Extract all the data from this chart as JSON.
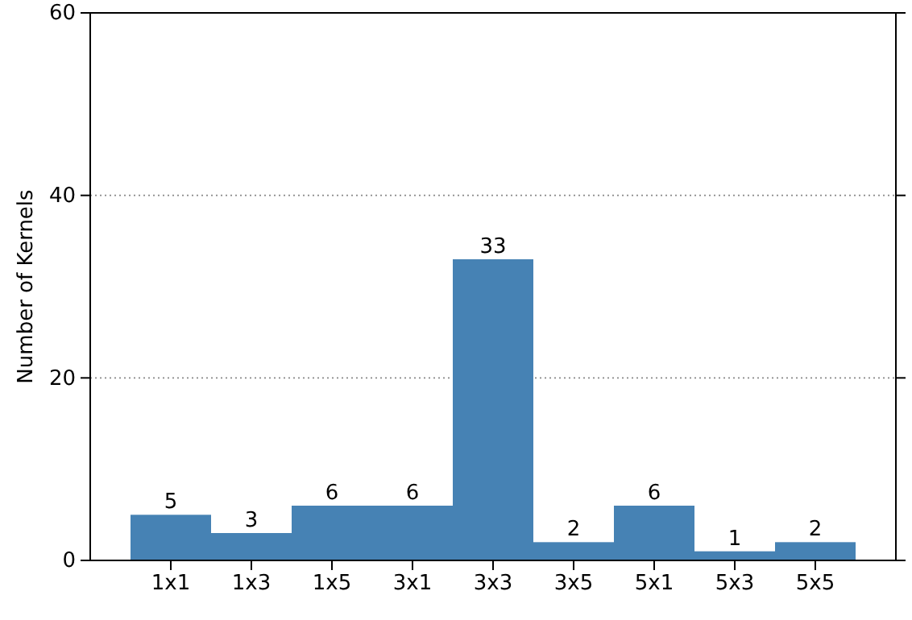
{
  "chart_data": {
    "type": "bar",
    "ylabel": "Number of Kernels",
    "categories": [
      "1x1",
      "1x3",
      "1x5",
      "3x1",
      "3x3",
      "3x5",
      "5x1",
      "5x3",
      "5x5"
    ],
    "values": [
      5,
      3,
      6,
      6,
      33,
      2,
      6,
      1,
      2
    ],
    "color": "#4682b4",
    "ylim": [
      0,
      60
    ],
    "yticks": [
      0,
      20,
      40,
      60
    ],
    "grid": "y",
    "line_style": "dotted",
    "data_labels": true
  }
}
